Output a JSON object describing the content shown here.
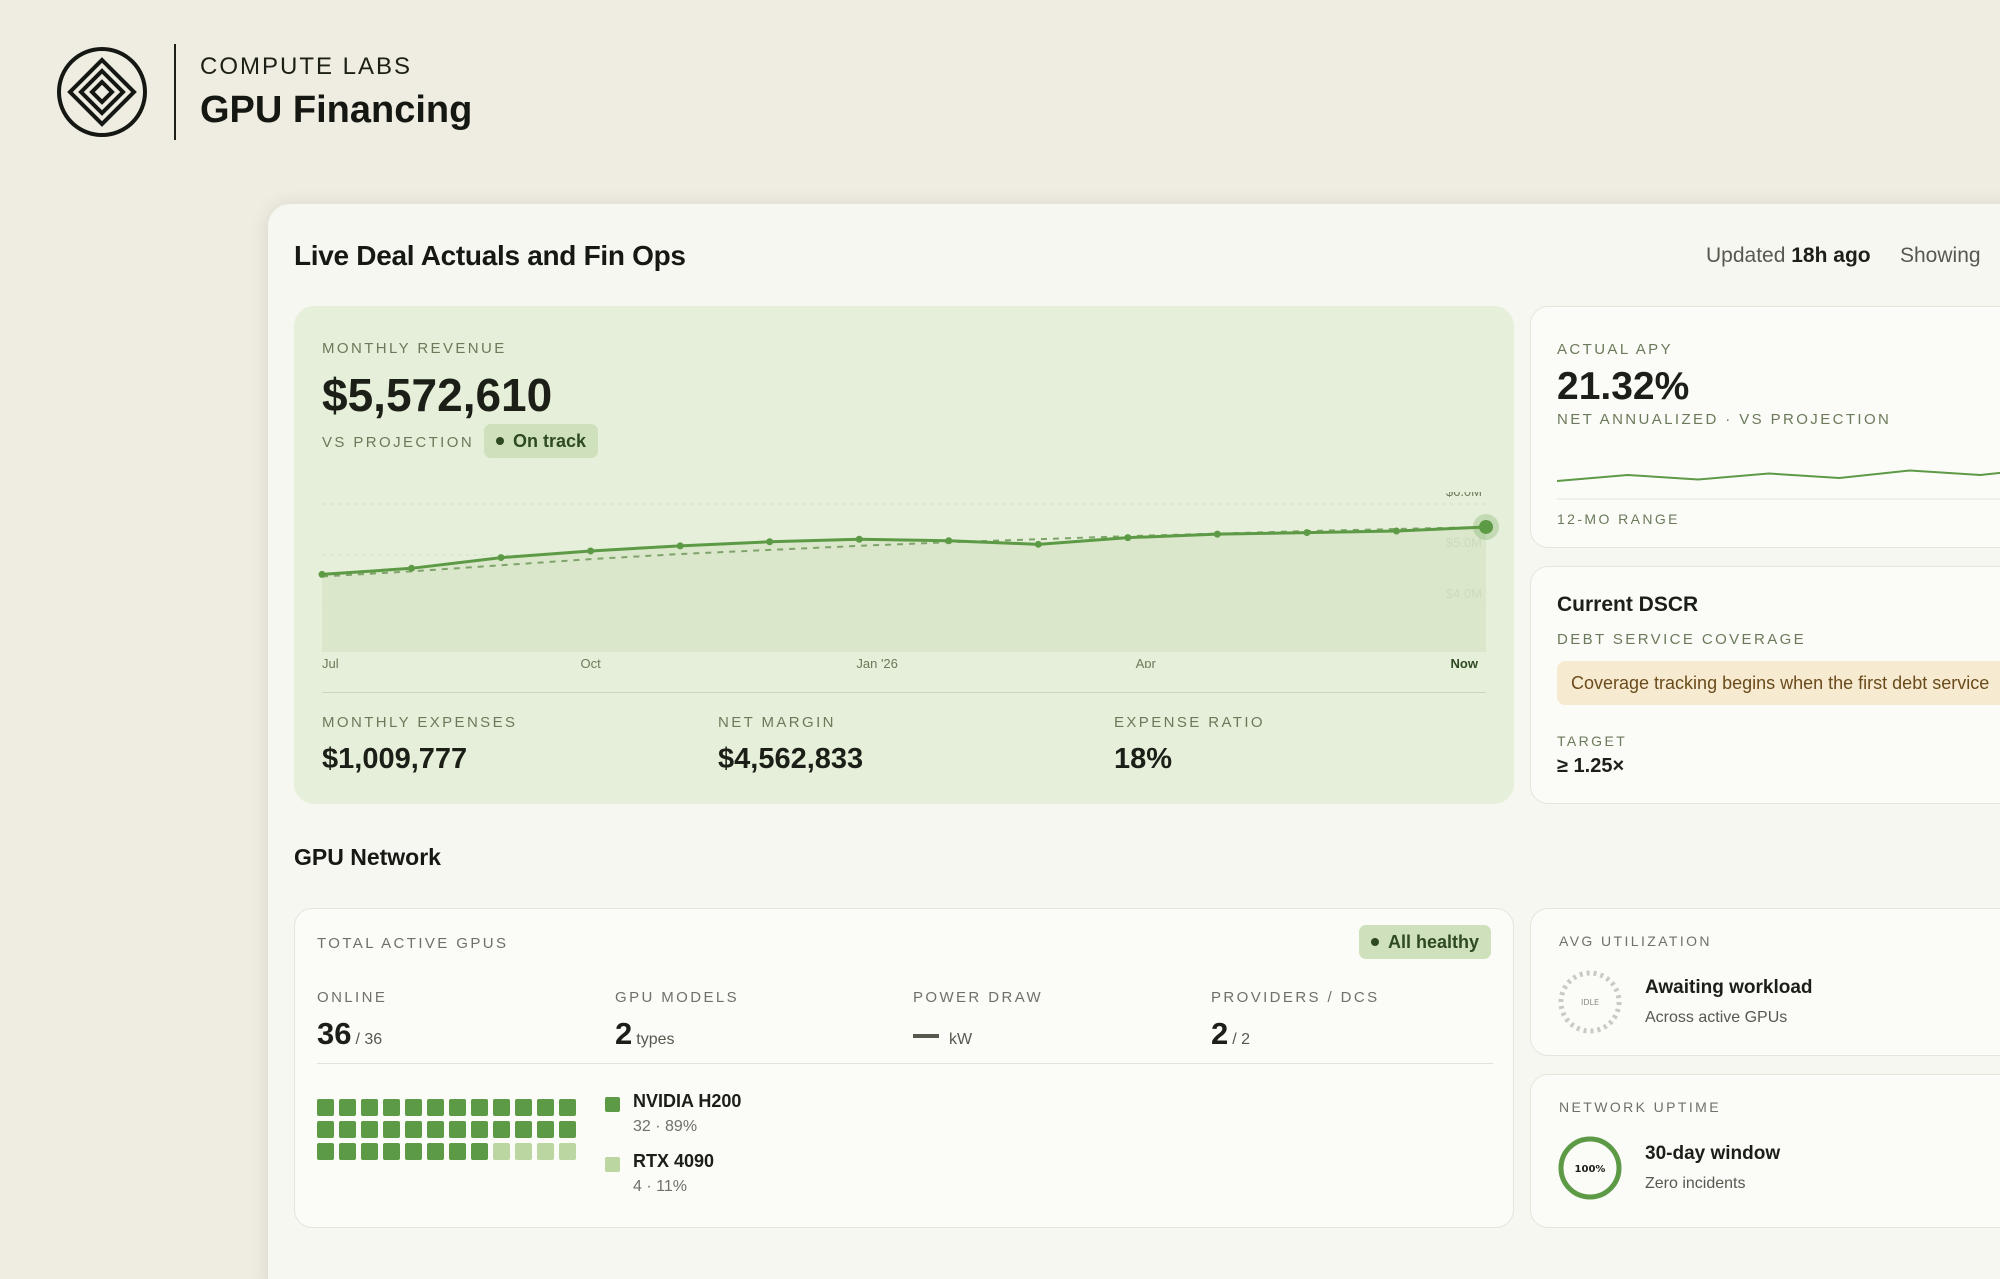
{
  "brand": {
    "company": "COMPUTE LABS",
    "product": "GPU Financing"
  },
  "header": {
    "title": "Live Deal Actuals and Fin Ops",
    "updated_prefix": "Updated",
    "updated_value": "18h ago",
    "showing_label": "Showing"
  },
  "revenue": {
    "label": "MONTHLY REVENUE",
    "value": "$5,572,610",
    "vs_label": "VS PROJECTION",
    "status": "On track",
    "stats": [
      {
        "label": "MONTHLY EXPENSES",
        "value": "$1,009,777"
      },
      {
        "label": "NET MARGIN",
        "value": "$4,562,833"
      },
      {
        "label": "EXPENSE RATIO",
        "value": "18%"
      }
    ]
  },
  "chart_data": {
    "type": "area",
    "x_tick_labels": [
      "Jul",
      "Oct",
      "Jan '26",
      "Apr",
      "Now"
    ],
    "y_tick_labels": [
      "$6.0M",
      "$5.0M",
      "$4.0M"
    ],
    "ylim": [
      3.1,
      6.0
    ],
    "series": [
      {
        "name": "Actual",
        "values": [
          4.62,
          4.74,
          4.95,
          5.08,
          5.18,
          5.26,
          5.31,
          5.28,
          5.21,
          5.34,
          5.41,
          5.44,
          5.47,
          5.55
        ]
      },
      {
        "name": "Projection",
        "values": [
          4.58,
          4.68,
          4.8,
          4.92,
          5.02,
          5.1,
          5.18,
          5.25,
          5.31,
          5.37,
          5.42,
          5.47,
          5.51,
          5.55
        ]
      }
    ],
    "colors": {
      "actual": "#5d9a46",
      "projection": "#7fa46b",
      "fill": "#d8e5c8"
    }
  },
  "apy": {
    "label": "ACTUAL APY",
    "value": "21.32%",
    "sub": "NET ANNUALIZED · VS PROJECTION",
    "range_label": "12-MO RANGE",
    "spark": [
      0.2,
      0.4,
      0.25,
      0.45,
      0.3,
      0.55,
      0.4,
      0.65
    ]
  },
  "dscr": {
    "title": "Current DSCR",
    "sub": "DEBT SERVICE COVERAGE",
    "banner": "Coverage tracking begins when the first debt service",
    "target_label": "TARGET",
    "target_value": "≥ 1.25×"
  },
  "gpu_network": {
    "title": "GPU Network",
    "total_label": "TOTAL ACTIVE GPUS",
    "health": "All healthy",
    "stats": {
      "online": {
        "label": "ONLINE",
        "value": "36",
        "unit": "/ 36"
      },
      "models": {
        "label": "GPU MODELS",
        "value": "2",
        "unit": "types"
      },
      "power": {
        "label": "POWER DRAW",
        "unit": "kW"
      },
      "providers": {
        "label": "PROVIDERS / DCS",
        "value": "2",
        "unit": "/ 2"
      }
    },
    "models": [
      {
        "name": "NVIDIA H200",
        "meta": "32 · 89%",
        "count": 32,
        "color": "#5d9a46"
      },
      {
        "name": "RTX 4090",
        "meta": "4 · 11%",
        "count": 4,
        "color": "#bcd6a2"
      }
    ]
  },
  "utilization": {
    "label": "AVG UTILIZATION",
    "ring_text": "IDLE",
    "title": "Awaiting workload",
    "sub": "Across active GPUs"
  },
  "uptime": {
    "label": "NETWORK UPTIME",
    "ring_text": "100%",
    "title": "30-day window",
    "sub": "Zero incidents",
    "uptime_fraction": 1.0
  }
}
